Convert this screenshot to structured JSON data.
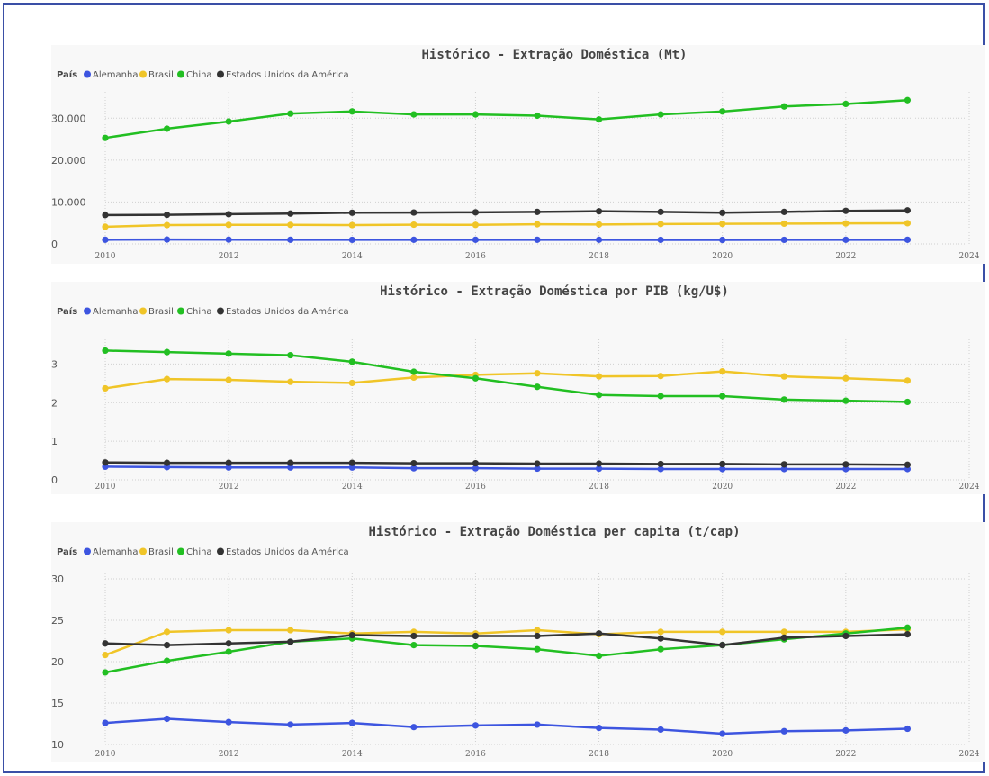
{
  "countries": [
    {
      "name": "Alemanha",
      "color": "#3d55e0"
    },
    {
      "name": "Brasil",
      "color": "#f0c528"
    },
    {
      "name": "China",
      "color": "#22bf22"
    },
    {
      "name": "Estados Unidos da América",
      "color": "#333333"
    }
  ],
  "legend_title": "País",
  "chart_data": [
    {
      "type": "line",
      "title": "Histórico - Extração Doméstica (Mt)",
      "xlim": [
        2010,
        2024
      ],
      "x_ticks": [
        2010,
        2012,
        2014,
        2016,
        2018,
        2020,
        2022,
        2024
      ],
      "ylim": [
        0,
        35000
      ],
      "y_ticks": [
        0,
        10000,
        20000,
        30000
      ],
      "y_tick_labels": [
        "0",
        "10.000",
        "20.000",
        "30.000"
      ],
      "x": [
        2010,
        2011,
        2012,
        2013,
        2014,
        2015,
        2016,
        2017,
        2018,
        2019,
        2020,
        2021,
        2022,
        2023
      ],
      "series": [
        {
          "name": "Alemanha",
          "values": [
            1000,
            1050,
            1020,
            1000,
            980,
            990,
            990,
            1000,
            990,
            970,
            960,
            980,
            990,
            1000
          ]
        },
        {
          "name": "Brasil",
          "values": [
            4100,
            4500,
            4550,
            4550,
            4500,
            4600,
            4550,
            4700,
            4650,
            4750,
            4800,
            4850,
            4900,
            4950
          ]
        },
        {
          "name": "China",
          "values": [
            25300,
            27500,
            29200,
            31100,
            31600,
            30900,
            30900,
            30600,
            29700,
            30900,
            31600,
            32800,
            33400,
            34300
          ]
        },
        {
          "name": "Estados Unidos da América",
          "values": [
            6900,
            6950,
            7100,
            7250,
            7450,
            7500,
            7550,
            7650,
            7800,
            7650,
            7450,
            7650,
            7900,
            8000
          ]
        }
      ]
    },
    {
      "type": "line",
      "title": "Histórico - Extração Doméstica por PIB (kg/U$)",
      "xlim": [
        2010,
        2024
      ],
      "x_ticks": [
        2010,
        2012,
        2014,
        2016,
        2018,
        2020,
        2022,
        2024
      ],
      "ylim": [
        0,
        3.5
      ],
      "y_ticks": [
        0,
        1,
        2,
        3
      ],
      "y_tick_labels": [
        "0",
        "1",
        "2",
        "3"
      ],
      "x": [
        2010,
        2011,
        2012,
        2013,
        2014,
        2015,
        2016,
        2017,
        2018,
        2019,
        2020,
        2021,
        2022,
        2023
      ],
      "series": [
        {
          "name": "Alemanha",
          "values": [
            0.34,
            0.33,
            0.32,
            0.32,
            0.32,
            0.3,
            0.3,
            0.29,
            0.29,
            0.28,
            0.28,
            0.28,
            0.28,
            0.28
          ]
        },
        {
          "name": "Brasil",
          "values": [
            2.37,
            2.61,
            2.59,
            2.54,
            2.51,
            2.65,
            2.72,
            2.76,
            2.68,
            2.69,
            2.81,
            2.68,
            2.63,
            2.57
          ]
        },
        {
          "name": "China",
          "values": [
            3.35,
            3.31,
            3.27,
            3.23,
            3.06,
            2.8,
            2.63,
            2.41,
            2.2,
            2.17,
            2.17,
            2.08,
            2.05,
            2.02
          ]
        },
        {
          "name": "Estados Unidos da América",
          "values": [
            0.45,
            0.44,
            0.44,
            0.44,
            0.44,
            0.43,
            0.43,
            0.42,
            0.42,
            0.41,
            0.41,
            0.4,
            0.4,
            0.39
          ]
        }
      ]
    },
    {
      "type": "line",
      "title": "Histórico - Extração Doméstica per capita (t/cap)",
      "xlim": [
        2010,
        2024
      ],
      "x_ticks": [
        2010,
        2012,
        2014,
        2016,
        2018,
        2020,
        2022,
        2024
      ],
      "ylim": [
        10,
        30
      ],
      "y_ticks": [
        10,
        15,
        20,
        25,
        30
      ],
      "y_tick_labels": [
        "10",
        "15",
        "20",
        "25",
        "30"
      ],
      "x": [
        2010,
        2011,
        2012,
        2013,
        2014,
        2015,
        2016,
        2017,
        2018,
        2019,
        2020,
        2021,
        2022,
        2023
      ],
      "series": [
        {
          "name": "Alemanha",
          "values": [
            12.6,
            13.1,
            12.7,
            12.4,
            12.6,
            12.1,
            12.3,
            12.4,
            12.0,
            11.8,
            11.3,
            11.6,
            11.7,
            11.9
          ]
        },
        {
          "name": "Brasil",
          "values": [
            20.8,
            23.6,
            23.8,
            23.8,
            23.4,
            23.6,
            23.4,
            23.8,
            23.3,
            23.6,
            23.6,
            23.6,
            23.6,
            23.9
          ]
        },
        {
          "name": "China",
          "values": [
            18.7,
            20.1,
            21.2,
            22.4,
            22.8,
            22.0,
            21.9,
            21.5,
            20.7,
            21.5,
            22.0,
            22.7,
            23.4,
            24.1
          ]
        },
        {
          "name": "Estados Unidos da América",
          "values": [
            22.2,
            22.0,
            22.2,
            22.4,
            23.2,
            23.1,
            23.1,
            23.1,
            23.4,
            22.8,
            22.0,
            22.9,
            23.1,
            23.3
          ]
        }
      ]
    }
  ]
}
